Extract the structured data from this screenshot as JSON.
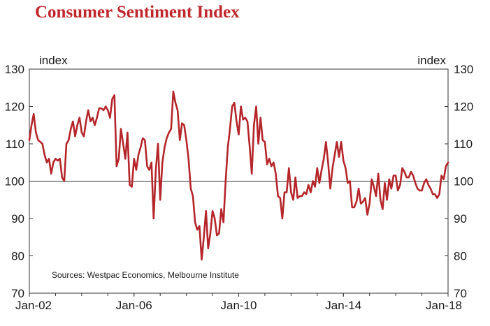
{
  "chart_data": {
    "type": "line",
    "title": "Consumer Sentiment Index",
    "ylabel_left": "index",
    "ylabel_right": "index",
    "note": "Sources: Westpac Economics, Melbourne Institute",
    "ylim": [
      70,
      130
    ],
    "yticks": [
      70,
      80,
      90,
      100,
      110,
      120,
      130
    ],
    "xlim": [
      "2002-01",
      "2018-01"
    ],
    "xticks": [
      {
        "label": "Jan-02",
        "date": "2002-01"
      },
      {
        "label": "Jan-06",
        "date": "2006-01"
      },
      {
        "label": "Jan-10",
        "date": "2010-01"
      },
      {
        "label": "Jan-14",
        "date": "2014-01"
      },
      {
        "label": "Jan-18",
        "date": "2018-01"
      }
    ],
    "reference_line": 100,
    "grid": false,
    "series": [
      {
        "color": "#b5262b",
        "points": [
          [
            "2002-01",
            111.0
          ],
          [
            "2002-02",
            115.0
          ],
          [
            "2002-03",
            118.0
          ],
          [
            "2002-04",
            113.0
          ],
          [
            "2002-05",
            111.0
          ],
          [
            "2002-06",
            110.5
          ],
          [
            "2002-07",
            110.0
          ],
          [
            "2002-08",
            107.0
          ],
          [
            "2002-09",
            105.0
          ],
          [
            "2002-10",
            106.0
          ],
          [
            "2002-11",
            102.0
          ],
          [
            "2002-12",
            105.0
          ],
          [
            "2003-01",
            106.0
          ],
          [
            "2003-02",
            105.5
          ],
          [
            "2003-03",
            106.0
          ],
          [
            "2003-04",
            101.0
          ],
          [
            "2003-05",
            100.0
          ],
          [
            "2003-06",
            110.0
          ],
          [
            "2003-07",
            111.0
          ],
          [
            "2003-08",
            114.0
          ],
          [
            "2003-09",
            116.0
          ],
          [
            "2003-10",
            112.0
          ],
          [
            "2003-11",
            115.0
          ],
          [
            "2003-12",
            117.0
          ],
          [
            "2004-01",
            113.0
          ],
          [
            "2004-02",
            112.0
          ],
          [
            "2004-03",
            116.0
          ],
          [
            "2004-04",
            119.0
          ],
          [
            "2004-05",
            116.0
          ],
          [
            "2004-06",
            117.0
          ],
          [
            "2004-07",
            115.0
          ],
          [
            "2004-08",
            117.0
          ],
          [
            "2004-09",
            119.5
          ],
          [
            "2004-10",
            119.5
          ],
          [
            "2004-11",
            119.0
          ],
          [
            "2004-12",
            120.0
          ],
          [
            "2005-01",
            119.0
          ],
          [
            "2005-02",
            117.0
          ],
          [
            "2005-03",
            122.0
          ],
          [
            "2005-04",
            123.0
          ],
          [
            "2005-05",
            104.0
          ],
          [
            "2005-06",
            106.0
          ],
          [
            "2005-07",
            114.0
          ],
          [
            "2005-08",
            110.0
          ],
          [
            "2005-09",
            106.0
          ],
          [
            "2005-10",
            113.0
          ],
          [
            "2005-11",
            99.0
          ],
          [
            "2005-12",
            98.5
          ],
          [
            "2006-01",
            106.0
          ],
          [
            "2006-02",
            103.0
          ],
          [
            "2006-03",
            107.0
          ],
          [
            "2006-04",
            109.0
          ],
          [
            "2006-05",
            111.5
          ],
          [
            "2006-06",
            111.0
          ],
          [
            "2006-07",
            104.0
          ],
          [
            "2006-08",
            103.0
          ],
          [
            "2006-09",
            105.0
          ],
          [
            "2006-10",
            90.0
          ],
          [
            "2006-11",
            103.0
          ],
          [
            "2006-12",
            110.0
          ],
          [
            "2007-01",
            95.0
          ],
          [
            "2007-02",
            105.0
          ],
          [
            "2007-03",
            109.0
          ],
          [
            "2007-04",
            111.5
          ],
          [
            "2007-05",
            113.0
          ],
          [
            "2007-06",
            114.0
          ],
          [
            "2007-07",
            124.0
          ],
          [
            "2007-08",
            121.0
          ],
          [
            "2007-09",
            119.0
          ],
          [
            "2007-10",
            111.0
          ],
          [
            "2007-11",
            115.5
          ],
          [
            "2007-12",
            115.0
          ],
          [
            "2008-01",
            111.0
          ],
          [
            "2008-02",
            106.0
          ],
          [
            "2008-03",
            98.0
          ],
          [
            "2008-04",
            96.0
          ],
          [
            "2008-05",
            89.0
          ],
          [
            "2008-06",
            87.0
          ],
          [
            "2008-07",
            88.0
          ],
          [
            "2008-08",
            79.0
          ],
          [
            "2008-09",
            85.0
          ],
          [
            "2008-10",
            92.0
          ],
          [
            "2008-11",
            82.0
          ],
          [
            "2008-12",
            86.0
          ],
          [
            "2009-01",
            92.0
          ],
          [
            "2009-02",
            90.0
          ],
          [
            "2009-03",
            85.5
          ],
          [
            "2009-04",
            86.0
          ],
          [
            "2009-05",
            92.5
          ],
          [
            "2009-06",
            89.0
          ],
          [
            "2009-07",
            100.0
          ],
          [
            "2009-08",
            109.0
          ],
          [
            "2009-09",
            114.0
          ],
          [
            "2009-10",
            120.0
          ],
          [
            "2009-11",
            121.0
          ],
          [
            "2009-12",
            116.0
          ],
          [
            "2010-01",
            112.5
          ],
          [
            "2010-02",
            120.0
          ],
          [
            "2010-03",
            116.5
          ],
          [
            "2010-04",
            117.0
          ],
          [
            "2010-05",
            116.0
          ],
          [
            "2010-06",
            109.5
          ],
          [
            "2010-07",
            102.0
          ],
          [
            "2010-08",
            115.0
          ],
          [
            "2010-09",
            120.0
          ],
          [
            "2010-10",
            110.0
          ],
          [
            "2010-11",
            117.0
          ],
          [
            "2010-12",
            111.0
          ],
          [
            "2011-01",
            110.5
          ],
          [
            "2011-02",
            104.5
          ],
          [
            "2011-03",
            106.0
          ],
          [
            "2011-04",
            104.0
          ],
          [
            "2011-05",
            105.0
          ],
          [
            "2011-06",
            102.0
          ],
          [
            "2011-07",
            96.0
          ],
          [
            "2011-08",
            95.5
          ],
          [
            "2011-09",
            90.0
          ],
          [
            "2011-10",
            97.0
          ],
          [
            "2011-11",
            97.0
          ],
          [
            "2011-12",
            103.5
          ],
          [
            "2012-01",
            97.0
          ],
          [
            "2012-02",
            95.0
          ],
          [
            "2012-03",
            101.0
          ],
          [
            "2012-04",
            95.5
          ],
          [
            "2012-05",
            96.0
          ],
          [
            "2012-06",
            96.0
          ],
          [
            "2012-07",
            97.0
          ],
          [
            "2012-08",
            96.5
          ],
          [
            "2012-09",
            99.0
          ],
          [
            "2012-10",
            97.0
          ],
          [
            "2012-11",
            100.0
          ],
          [
            "2012-12",
            98.5
          ],
          [
            "2013-01",
            103.5
          ],
          [
            "2013-02",
            99.5
          ],
          [
            "2013-03",
            103.0
          ],
          [
            "2013-04",
            106.0
          ],
          [
            "2013-05",
            110.5
          ],
          [
            "2013-06",
            105.0
          ],
          [
            "2013-07",
            98.0
          ],
          [
            "2013-08",
            103.5
          ],
          [
            "2013-09",
            107.0
          ],
          [
            "2013-10",
            110.5
          ],
          [
            "2013-11",
            106.5
          ],
          [
            "2013-12",
            110.5
          ],
          [
            "2014-01",
            105.5
          ],
          [
            "2014-02",
            103.5
          ],
          [
            "2014-03",
            99.5
          ],
          [
            "2014-04",
            100.0
          ],
          [
            "2014-05",
            93.0
          ],
          [
            "2014-06",
            93.0
          ],
          [
            "2014-07",
            94.5
          ],
          [
            "2014-08",
            98.0
          ],
          [
            "2014-09",
            94.0
          ],
          [
            "2014-10",
            94.5
          ],
          [
            "2014-11",
            95.5
          ],
          [
            "2014-12",
            91.0
          ],
          [
            "2015-01",
            94.0
          ],
          [
            "2015-02",
            100.5
          ],
          [
            "2015-03",
            98.5
          ],
          [
            "2015-04",
            96.0
          ],
          [
            "2015-05",
            102.0
          ],
          [
            "2015-06",
            95.0
          ],
          [
            "2015-07",
            92.5
          ],
          [
            "2015-08",
            99.5
          ],
          [
            "2015-09",
            95.0
          ],
          [
            "2015-10",
            100.5
          ],
          [
            "2015-11",
            98.0
          ],
          [
            "2015-12",
            101.5
          ],
          [
            "2016-01",
            101.5
          ],
          [
            "2016-02",
            97.5
          ],
          [
            "2016-03",
            99.0
          ],
          [
            "2016-04",
            103.5
          ],
          [
            "2016-05",
            102.5
          ],
          [
            "2016-06",
            101.0
          ],
          [
            "2016-07",
            101.0
          ],
          [
            "2016-08",
            102.5
          ],
          [
            "2016-09",
            101.5
          ],
          [
            "2016-10",
            99.5
          ],
          [
            "2016-11",
            98.0
          ],
          [
            "2016-12",
            97.5
          ],
          [
            "2017-01",
            97.5
          ],
          [
            "2017-02",
            99.5
          ],
          [
            "2017-03",
            100.5
          ],
          [
            "2017-04",
            99.0
          ],
          [
            "2017-05",
            98.0
          ],
          [
            "2017-06",
            96.5
          ],
          [
            "2017-07",
            96.5
          ],
          [
            "2017-08",
            95.5
          ],
          [
            "2017-09",
            96.5
          ],
          [
            "2017-10",
            101.5
          ],
          [
            "2017-11",
            100.5
          ],
          [
            "2017-12",
            104.0
          ],
          [
            "2018-01",
            105.0
          ]
        ]
      }
    ]
  }
}
